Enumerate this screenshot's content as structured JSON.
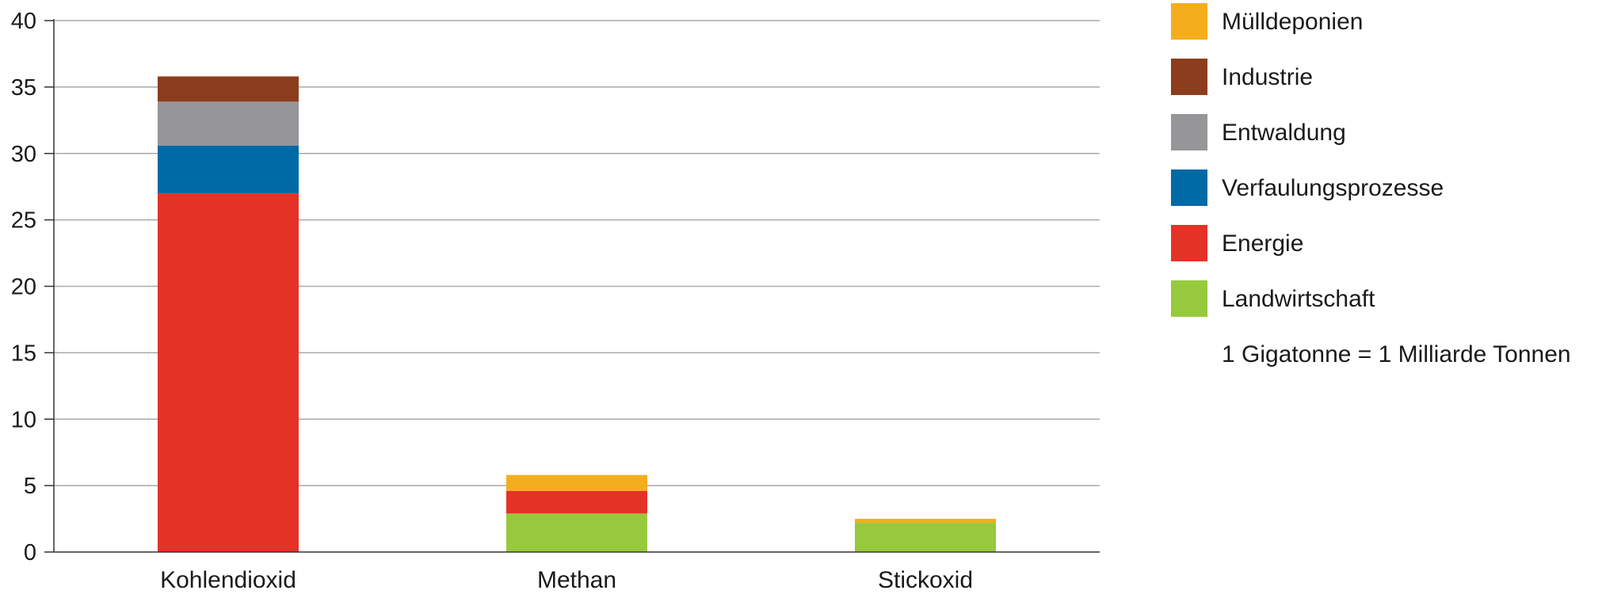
{
  "chart_data": {
    "type": "bar",
    "stacked": true,
    "categories": [
      "Kohlendioxid",
      "Methan",
      "Stickoxid"
    ],
    "series": [
      {
        "name": "Landwirtschaft",
        "color": "#97c93d",
        "values": [
          0,
          2.9,
          2.2
        ]
      },
      {
        "name": "Energie",
        "color": "#e53227",
        "values": [
          27.0,
          1.7,
          0
        ]
      },
      {
        "name": "Verfaulungsprozesse",
        "color": "#006aa6",
        "values": [
          3.6,
          0,
          0
        ]
      },
      {
        "name": "Entwaldung",
        "color": "#969699",
        "values": [
          3.3,
          0,
          0
        ]
      },
      {
        "name": "Industrie",
        "color": "#8b3d1e",
        "values": [
          1.9,
          0,
          0
        ]
      },
      {
        "name": "Mülldeponien",
        "color": "#f4ae1d",
        "values": [
          0,
          1.2,
          0.3
        ]
      }
    ],
    "legend_order": [
      "Mülldeponien",
      "Industrie",
      "Entwaldung",
      "Verfaulungsprozesse",
      "Energie",
      "Landwirtschaft"
    ],
    "legend_note": "1 Gigatonne = 1 Milliarde Tonnen",
    "yticks": [
      0,
      5,
      10,
      15,
      20,
      25,
      30,
      35,
      40
    ],
    "ylim": [
      0,
      40
    ],
    "grid": true,
    "legend_position": "right",
    "title": "",
    "xlabel": "",
    "ylabel": ""
  }
}
